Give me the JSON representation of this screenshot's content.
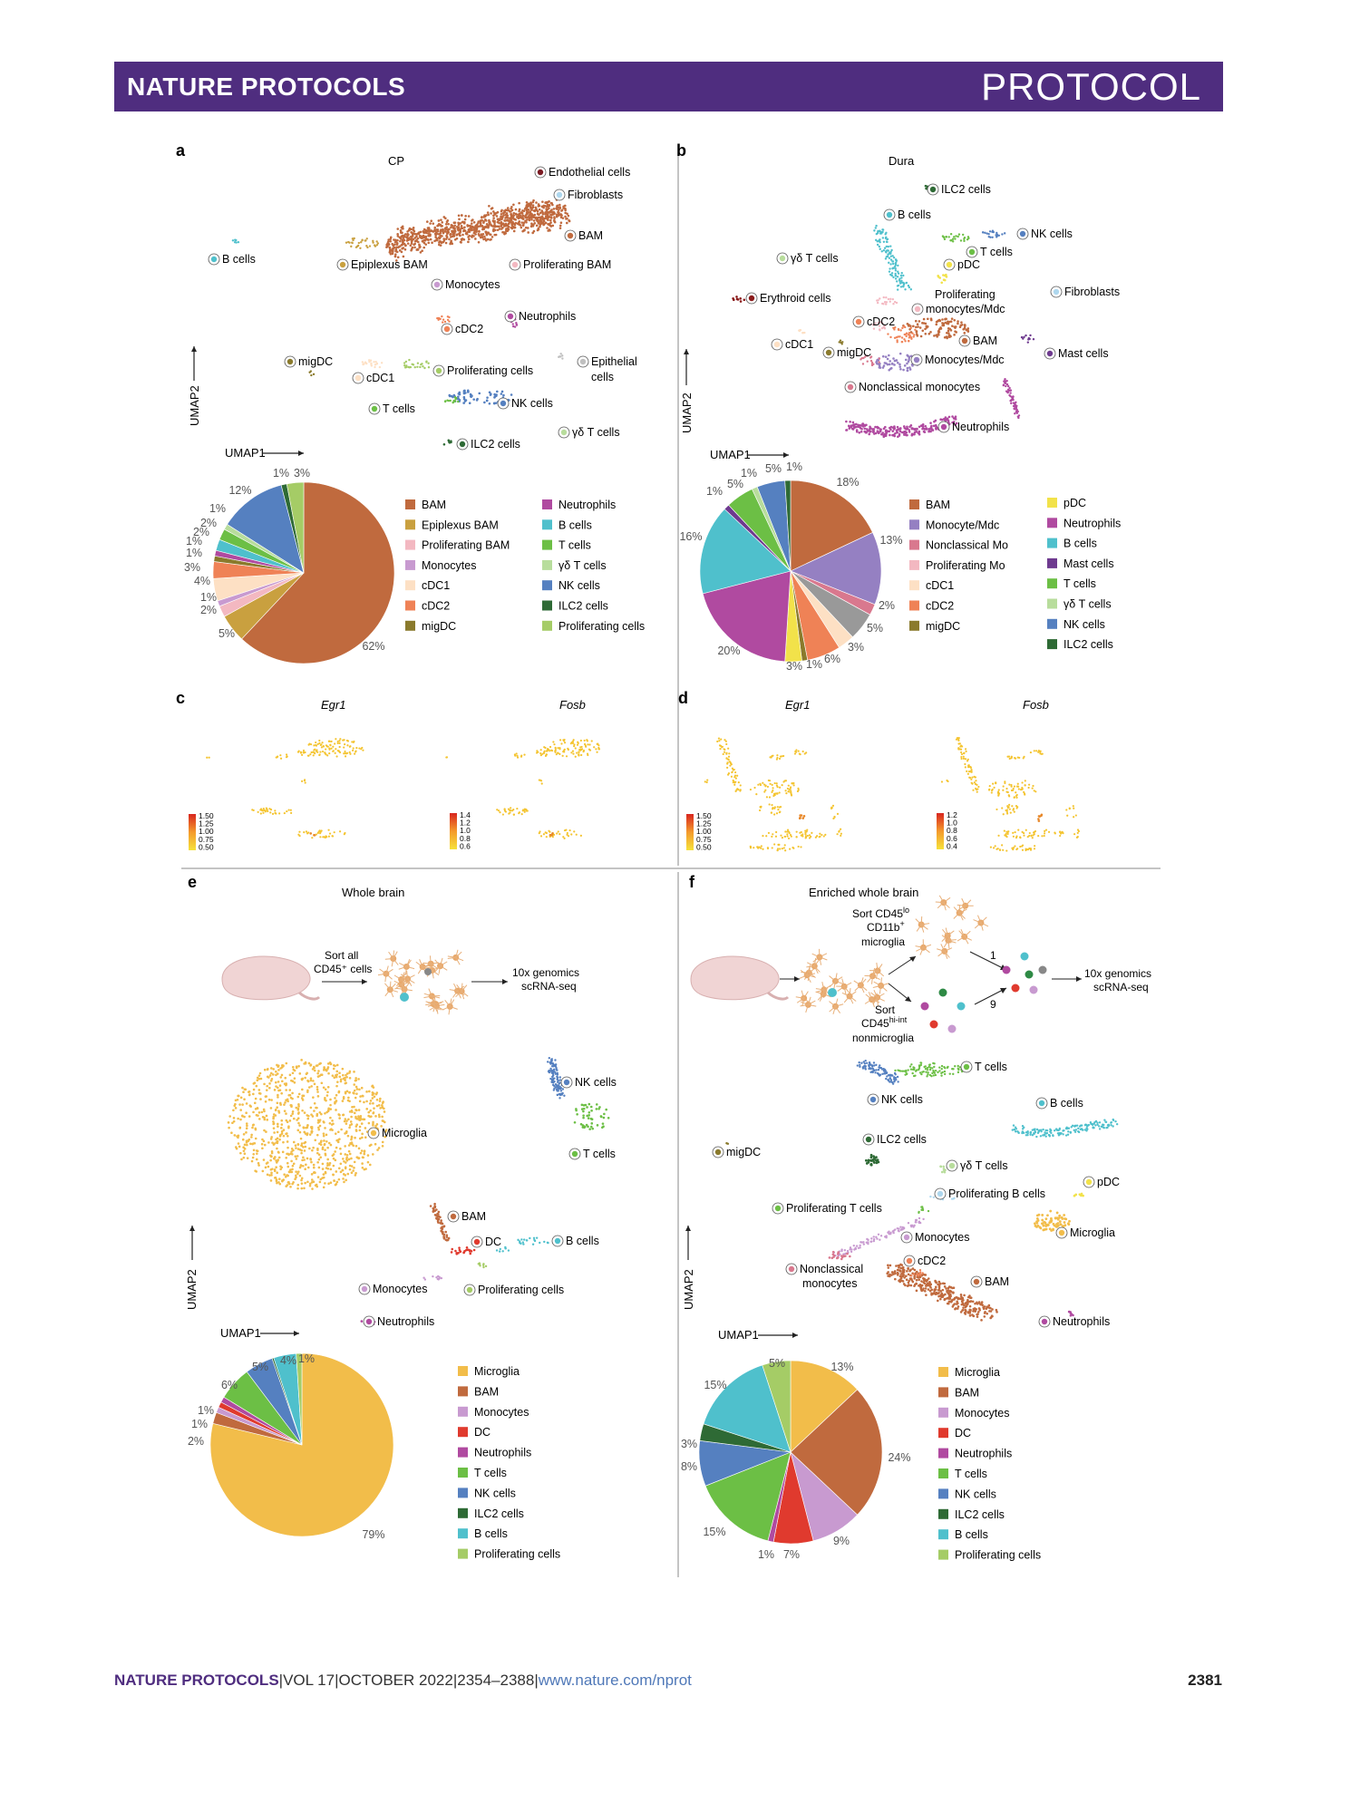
{
  "header": {
    "journal": "NATURE PROTOCOLS",
    "type": "PROTOCOL"
  },
  "footer": {
    "journal": "NATURE PROTOCOLS",
    "sep1": "|",
    "volume": "VOL 17",
    "sep2": "|",
    "date": "OCTOBER 2022",
    "sep3": "|",
    "pages": "2354–2388",
    "sep4": "|",
    "url": "www.nature.com/nprot",
    "page": "2381"
  },
  "colors": {
    "BAM": "#c06a3e",
    "Epiplexus BAM": "#c9a03f",
    "Proliferating BAM": "#f3b8c1",
    "Monocytes": "#c89ad0",
    "cDC1": "#fde0c4",
    "cDC2": "#ef8256",
    "migDC": "#8a7a2c",
    "Neutrophils": "#b04aa0",
    "B cells": "#4fc0cc",
    "T cells": "#6cbf45",
    "gdT": "#b8dd9c",
    "NK cells": "#5580c0",
    "ILC2 cells": "#2e6a35",
    "Proliferating cells": "#a5cc66",
    "Endothelial": "#7a1a22",
    "Fibroblasts": "#aed7ee",
    "Epithelial": "#bfbfbf",
    "Monocyte/Mdc": "#9580c2",
    "Nonclassical Mo": "#d9788e",
    "pDC": "#f2e24a",
    "Mast cells": "#6e3a8f",
    "Microglia": "#f2bd4a",
    "DC": "#e03a2e",
    "Erythroid": "#8a1a1a"
  },
  "panels": {
    "a": {
      "letter": "a",
      "title": "CP",
      "umap1": "UMAP1",
      "umap2": "UMAP2",
      "clusters": [
        "Endothelial cells",
        "Fibroblasts",
        "BAM",
        "B cells",
        "Epiplexus BAM",
        "Proliferating BAM",
        "Monocytes",
        "Neutrophils",
        "cDC2",
        "migDC",
        "cDC1",
        "Proliferating cells",
        "Epithelial",
        "cells",
        "T cells",
        "NK cells",
        "γδ T cells",
        "ILC2 cells"
      ],
      "legend_left": [
        "BAM",
        "Epiplexus BAM",
        "Proliferating BAM",
        "Monocytes",
        "cDC1",
        "cDC2",
        "migDC"
      ],
      "legend_right": [
        "Neutrophils",
        "B cells",
        "T cells",
        "γδ T cells",
        "NK cells",
        "ILC2 cells",
        "Proliferating cells"
      ]
    },
    "b": {
      "letter": "b",
      "title": "Dura",
      "umap1": "UMAP1",
      "umap2": "UMAP2",
      "clusters": [
        "ILC2 cells",
        "B cells",
        "NK cells",
        "γδ T cells",
        "T cells",
        "pDC",
        "Proliferating",
        "monocytes/Mdc",
        "Fibroblasts",
        "Erythroid cells",
        "cDC2",
        "BAM",
        "cDC1",
        "migDC",
        "Monocytes/Mdc",
        "Mast cells",
        "Nonclassical monocytes",
        "Neutrophils"
      ],
      "legend_left": [
        "BAM",
        "Monocyte/Mdc",
        "Nonclassical Mo",
        "Proliferating Mo",
        "cDC1",
        "cDC2",
        "migDC"
      ],
      "legend_right": [
        "pDC",
        "Neutrophils",
        "B cells",
        "Mast cells",
        "T cells",
        "γδ T cells",
        "NK cells",
        "ILC2 cells"
      ]
    },
    "c": {
      "letter": "c",
      "gene1": "Egr1",
      "gene2": "Fosb",
      "scale1": [
        "1.50",
        "1.25",
        "1.00",
        "0.75",
        "0.50"
      ],
      "scale2": [
        "1.4",
        "1.2",
        "1.0",
        "0.8",
        "0.6"
      ]
    },
    "d": {
      "letter": "d",
      "gene1": "Egr1",
      "gene2": "Fosb",
      "scale1": [
        "1.50",
        "1.25",
        "1.00",
        "0.75",
        "0.50"
      ],
      "scale2": [
        "1.2",
        "1.0",
        "0.8",
        "0.6",
        "0.4"
      ]
    },
    "e": {
      "letter": "e",
      "title": "Whole brain",
      "sort1": "Sort all",
      "sort2": "CD45⁺ cells",
      "genomics1": "10x genomics",
      "genomics2": "scRNA-seq",
      "umap1": "UMAP1",
      "umap2": "UMAP2",
      "clusters": [
        "NK cells",
        "Microglia",
        "T cells",
        "BAM",
        "DC",
        "B cells",
        "Monocytes",
        "Proliferating cells",
        "Neutrophils"
      ],
      "legend": [
        "Microglia",
        "BAM",
        "Monocytes",
        "DC",
        "Neutrophils",
        "T cells",
        "NK cells",
        "ILC2 cells",
        "B cells",
        "Proliferating cells"
      ]
    },
    "f": {
      "letter": "f",
      "title": "Enriched whole brain",
      "sortA1": "Sort CD45",
      "sortA1_sup": "lo",
      "sortA2": "CD11b",
      "sortA2_sup": "+",
      "sortA3": "microglia",
      "sortB1": "Sort",
      "sortB2": "CD45",
      "sortB2_sup": "hi-int",
      "sortB3": "nonmicroglia",
      "ratio1": "1",
      "ratio2": "9",
      "genomics1": "10x genomics",
      "genomics2": "scRNA-seq",
      "umap1": "UMAP1",
      "umap2": "UMAP2",
      "clusters": [
        "T cells",
        "NK cells",
        "B cells",
        "ILC2 cells",
        "migDC",
        "γδ T cells",
        "pDC",
        "Proliferating B cells",
        "Proliferating T cells",
        "Microglia",
        "Monocytes",
        "Nonclassical",
        "monocytes",
        "cDC2",
        "BAM",
        "Neutrophils"
      ],
      "legend": [
        "Microglia",
        "BAM",
        "Monocytes",
        "DC",
        "Neutrophils",
        "T cells",
        "NK cells",
        "ILC2 cells",
        "B cells",
        "Proliferating cells"
      ]
    }
  },
  "chart_data": [
    {
      "type": "pie",
      "panel": "a",
      "title": "CP",
      "slices": [
        {
          "label": "BAM",
          "value": 62
        },
        {
          "label": "Epiplexus BAM",
          "value": 5
        },
        {
          "label": "Proliferating BAM",
          "value": 2
        },
        {
          "label": "Monocytes",
          "value": 1
        },
        {
          "label": "cDC1",
          "value": 4
        },
        {
          "label": "cDC2",
          "value": 3
        },
        {
          "label": "migDC",
          "value": 1
        },
        {
          "label": "Neutrophils",
          "value": 1
        },
        {
          "label": "B cells",
          "value": 2
        },
        {
          "label": "T cells",
          "value": 2
        },
        {
          "label": "γδ T cells",
          "value": 1
        },
        {
          "label": "NK cells",
          "value": 12
        },
        {
          "label": "ILC2 cells",
          "value": 1
        },
        {
          "label": "Proliferating cells",
          "value": 3
        }
      ],
      "labels_shown": [
        "62%",
        "5%",
        "2%",
        "1%",
        "4%",
        "3%",
        "1%",
        "1%",
        "2%",
        "2%",
        "1%",
        "12%",
        "1%",
        "3%"
      ]
    },
    {
      "type": "pie",
      "panel": "b",
      "title": "Dura",
      "slices": [
        {
          "label": "BAM",
          "value": 18
        },
        {
          "label": "Monocyte/Mdc",
          "value": 13
        },
        {
          "label": "Nonclassical Mo",
          "value": 2
        },
        {
          "label": "Proliferating Mo",
          "value": 5
        },
        {
          "label": "cDC1",
          "value": 3
        },
        {
          "label": "cDC2",
          "value": 6
        },
        {
          "label": "migDC",
          "value": 1
        },
        {
          "label": "pDC",
          "value": 3
        },
        {
          "label": "Neutrophils",
          "value": 20
        },
        {
          "label": "B cells",
          "value": 16
        },
        {
          "label": "Mast cells",
          "value": 1
        },
        {
          "label": "T cells",
          "value": 5
        },
        {
          "label": "γδ T cells",
          "value": 1
        },
        {
          "label": "NK cells",
          "value": 5
        },
        {
          "label": "ILC2 cells",
          "value": 1
        }
      ],
      "labels_shown": [
        "18%",
        "13%",
        "2%",
        "5%",
        "3%",
        "6%",
        "1%",
        "3%",
        "20%",
        "16%",
        "1%",
        "5%",
        "1%",
        "5%",
        "1%"
      ]
    },
    {
      "type": "pie",
      "panel": "e",
      "title": "Whole brain",
      "slices": [
        {
          "label": "Microglia",
          "value": 79
        },
        {
          "label": "BAM",
          "value": 2
        },
        {
          "label": "Monocytes",
          "value": 1
        },
        {
          "label": "DC",
          "value": 1
        },
        {
          "label": "Neutrophils",
          "value": 1
        },
        {
          "label": "T cells",
          "value": 6
        },
        {
          "label": "NK cells",
          "value": 5
        },
        {
          "label": "ILC2 cells",
          "value": 0.3
        },
        {
          "label": "B cells",
          "value": 4
        },
        {
          "label": "Proliferating cells",
          "value": 1
        }
      ],
      "labels_shown": [
        "79%",
        "2%",
        "1%",
        "1%",
        "6%",
        "5%",
        "4%",
        "1%"
      ]
    },
    {
      "type": "pie",
      "panel": "f",
      "title": "Enriched whole brain",
      "slices": [
        {
          "label": "Microglia",
          "value": 13
        },
        {
          "label": "BAM",
          "value": 24
        },
        {
          "label": "Monocytes",
          "value": 9
        },
        {
          "label": "DC",
          "value": 7
        },
        {
          "label": "Neutrophils",
          "value": 1
        },
        {
          "label": "T cells",
          "value": 15
        },
        {
          "label": "NK cells",
          "value": 8
        },
        {
          "label": "ILC2 cells",
          "value": 3
        },
        {
          "label": "B cells",
          "value": 15
        },
        {
          "label": "Proliferating cells",
          "value": 5
        }
      ],
      "labels_shown": [
        "13%",
        "24%",
        "9%",
        "7%",
        "1%",
        "15%",
        "8%",
        "3%",
        "15%",
        "5%"
      ]
    }
  ]
}
